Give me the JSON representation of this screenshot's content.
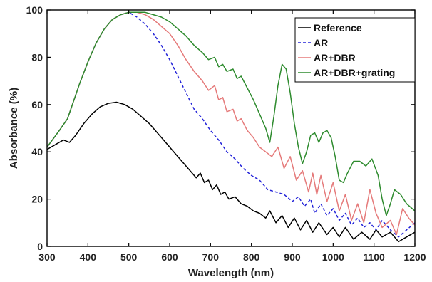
{
  "chart_data": {
    "type": "line",
    "title": "",
    "xlabel": "Wavelength (nm)",
    "ylabel": "Absorbance (%)",
    "xlim": [
      300,
      1200
    ],
    "ylim": [
      0,
      100
    ],
    "xticks": [
      300,
      400,
      500,
      600,
      700,
      800,
      900,
      1000,
      1100,
      1200
    ],
    "yticks": [
      0,
      20,
      40,
      60,
      80,
      100
    ],
    "grid": false,
    "legend_position": "top-right",
    "series": [
      {
        "name": "Reference",
        "color": "#000000",
        "dash": "solid",
        "points": [
          [
            300,
            41
          ],
          [
            320,
            43
          ],
          [
            340,
            45
          ],
          [
            355,
            44
          ],
          [
            370,
            47
          ],
          [
            390,
            52
          ],
          [
            410,
            56
          ],
          [
            430,
            59
          ],
          [
            450,
            60.5
          ],
          [
            470,
            61
          ],
          [
            490,
            60
          ],
          [
            510,
            58
          ],
          [
            530,
            55
          ],
          [
            550,
            52
          ],
          [
            570,
            48
          ],
          [
            590,
            44
          ],
          [
            610,
            40
          ],
          [
            630,
            36
          ],
          [
            650,
            32
          ],
          [
            665,
            29
          ],
          [
            675,
            31
          ],
          [
            685,
            27
          ],
          [
            695,
            28
          ],
          [
            705,
            24
          ],
          [
            715,
            26
          ],
          [
            725,
            22
          ],
          [
            735,
            23
          ],
          [
            745,
            20
          ],
          [
            760,
            21
          ],
          [
            775,
            18
          ],
          [
            790,
            17
          ],
          [
            805,
            15
          ],
          [
            820,
            14
          ],
          [
            835,
            12
          ],
          [
            845,
            15
          ],
          [
            860,
            10
          ],
          [
            875,
            13
          ],
          [
            890,
            8
          ],
          [
            905,
            12
          ],
          [
            920,
            7
          ],
          [
            935,
            11
          ],
          [
            950,
            6
          ],
          [
            965,
            10
          ],
          [
            985,
            5
          ],
          [
            1000,
            8
          ],
          [
            1015,
            4
          ],
          [
            1030,
            8
          ],
          [
            1050,
            3
          ],
          [
            1070,
            6
          ],
          [
            1090,
            3
          ],
          [
            1105,
            7
          ],
          [
            1120,
            4
          ],
          [
            1140,
            6
          ],
          [
            1160,
            2
          ],
          [
            1180,
            4
          ],
          [
            1200,
            6
          ]
        ]
      },
      {
        "name": "AR",
        "color": "#2323d8",
        "dash": "dashed",
        "points": [
          [
            300,
            42
          ],
          [
            330,
            49
          ],
          [
            350,
            54
          ],
          [
            380,
            69
          ],
          [
            400,
            78
          ],
          [
            420,
            86
          ],
          [
            440,
            92
          ],
          [
            460,
            96
          ],
          [
            480,
            98
          ],
          [
            500,
            99
          ],
          [
            520,
            97
          ],
          [
            540,
            94
          ],
          [
            560,
            90
          ],
          [
            580,
            85
          ],
          [
            600,
            79
          ],
          [
            620,
            72
          ],
          [
            640,
            65
          ],
          [
            660,
            58
          ],
          [
            680,
            54
          ],
          [
            700,
            49
          ],
          [
            720,
            45
          ],
          [
            740,
            40
          ],
          [
            760,
            37
          ],
          [
            780,
            33
          ],
          [
            800,
            30
          ],
          [
            820,
            28
          ],
          [
            840,
            24
          ],
          [
            860,
            23
          ],
          [
            880,
            22
          ],
          [
            900,
            19
          ],
          [
            915,
            21
          ],
          [
            930,
            17
          ],
          [
            945,
            20
          ],
          [
            955,
            14
          ],
          [
            970,
            18
          ],
          [
            985,
            13
          ],
          [
            1000,
            16
          ],
          [
            1015,
            11
          ],
          [
            1030,
            14
          ],
          [
            1045,
            9
          ],
          [
            1060,
            12
          ],
          [
            1075,
            8
          ],
          [
            1090,
            10
          ],
          [
            1105,
            7
          ],
          [
            1120,
            11
          ],
          [
            1140,
            7
          ],
          [
            1160,
            4
          ],
          [
            1180,
            7
          ],
          [
            1200,
            10
          ]
        ]
      },
      {
        "name": "AR+DBR",
        "color": "#e57a7a",
        "dash": "solid",
        "points": [
          [
            300,
            42
          ],
          [
            330,
            49
          ],
          [
            350,
            54
          ],
          [
            380,
            69
          ],
          [
            400,
            78
          ],
          [
            420,
            86
          ],
          [
            440,
            92
          ],
          [
            460,
            96
          ],
          [
            480,
            98
          ],
          [
            500,
            99
          ],
          [
            520,
            99
          ],
          [
            540,
            98
          ],
          [
            560,
            96
          ],
          [
            580,
            93
          ],
          [
            600,
            90
          ],
          [
            620,
            85
          ],
          [
            640,
            79
          ],
          [
            660,
            74
          ],
          [
            680,
            70
          ],
          [
            695,
            66
          ],
          [
            710,
            68
          ],
          [
            720,
            62
          ],
          [
            730,
            63
          ],
          [
            740,
            57
          ],
          [
            755,
            58
          ],
          [
            765,
            53
          ],
          [
            775,
            54
          ],
          [
            790,
            49
          ],
          [
            805,
            46
          ],
          [
            820,
            42
          ],
          [
            835,
            40
          ],
          [
            850,
            38
          ],
          [
            865,
            42
          ],
          [
            880,
            33
          ],
          [
            895,
            38
          ],
          [
            910,
            28
          ],
          [
            925,
            32
          ],
          [
            940,
            23
          ],
          [
            950,
            31
          ],
          [
            960,
            22
          ],
          [
            970,
            30
          ],
          [
            985,
            19
          ],
          [
            1000,
            27
          ],
          [
            1015,
            15
          ],
          [
            1030,
            22
          ],
          [
            1045,
            11
          ],
          [
            1060,
            18
          ],
          [
            1075,
            10
          ],
          [
            1090,
            24
          ],
          [
            1105,
            14
          ],
          [
            1120,
            8
          ],
          [
            1140,
            11
          ],
          [
            1155,
            5
          ],
          [
            1170,
            16
          ],
          [
            1185,
            12
          ],
          [
            1200,
            9
          ]
        ]
      },
      {
        "name": "AR+DBR+grating",
        "color": "#2e8b2e",
        "dash": "solid",
        "points": [
          [
            300,
            42
          ],
          [
            330,
            49
          ],
          [
            350,
            54
          ],
          [
            380,
            69
          ],
          [
            400,
            78
          ],
          [
            420,
            86
          ],
          [
            440,
            92
          ],
          [
            460,
            96
          ],
          [
            480,
            98
          ],
          [
            500,
            99
          ],
          [
            520,
            99
          ],
          [
            540,
            99
          ],
          [
            560,
            98
          ],
          [
            580,
            97
          ],
          [
            600,
            95
          ],
          [
            620,
            92
          ],
          [
            640,
            89
          ],
          [
            660,
            85
          ],
          [
            680,
            82
          ],
          [
            695,
            79
          ],
          [
            710,
            80
          ],
          [
            720,
            76
          ],
          [
            730,
            77
          ],
          [
            740,
            74
          ],
          [
            755,
            75
          ],
          [
            765,
            71
          ],
          [
            775,
            72
          ],
          [
            790,
            67
          ],
          [
            805,
            62
          ],
          [
            820,
            56
          ],
          [
            835,
            50
          ],
          [
            845,
            44
          ],
          [
            855,
            55
          ],
          [
            865,
            68
          ],
          [
            875,
            77
          ],
          [
            885,
            75
          ],
          [
            895,
            65
          ],
          [
            905,
            52
          ],
          [
            915,
            42
          ],
          [
            925,
            35
          ],
          [
            935,
            40
          ],
          [
            945,
            47
          ],
          [
            955,
            48
          ],
          [
            965,
            44
          ],
          [
            975,
            48
          ],
          [
            985,
            49
          ],
          [
            995,
            46
          ],
          [
            1005,
            38
          ],
          [
            1015,
            28
          ],
          [
            1025,
            27
          ],
          [
            1035,
            31
          ],
          [
            1050,
            36
          ],
          [
            1065,
            36
          ],
          [
            1080,
            34
          ],
          [
            1095,
            37
          ],
          [
            1110,
            30
          ],
          [
            1120,
            20
          ],
          [
            1130,
            13
          ],
          [
            1140,
            18
          ],
          [
            1150,
            24
          ],
          [
            1165,
            22
          ],
          [
            1180,
            18
          ],
          [
            1200,
            15
          ]
        ]
      }
    ]
  }
}
